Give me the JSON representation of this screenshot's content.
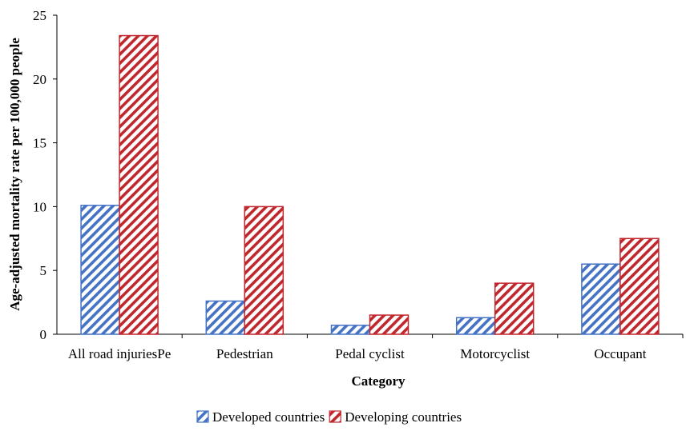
{
  "chart_data": {
    "type": "bar",
    "categories": [
      "All road injuriesPe",
      "Pedestrian",
      "Pedal cyclist",
      "Motorcyclist",
      "Occupant"
    ],
    "series": [
      {
        "name": "Developed countries",
        "values": [
          10.1,
          2.6,
          0.7,
          1.3,
          5.5
        ],
        "color": "#4472c4",
        "pattern": "diagonal-hatch"
      },
      {
        "name": "Developing countries",
        "values": [
          23.4,
          10.0,
          1.5,
          4.0,
          7.5
        ],
        "color": "#c0272d",
        "pattern": "diagonal-hatch"
      }
    ],
    "title": "",
    "xlabel": "Category",
    "ylabel": "Age-adjusted mortality rate per 100,000 people",
    "ylim": [
      0,
      25
    ],
    "yticks": [
      0,
      5,
      10,
      15,
      20,
      25
    ],
    "grid": false,
    "legend_position": "bottom"
  }
}
